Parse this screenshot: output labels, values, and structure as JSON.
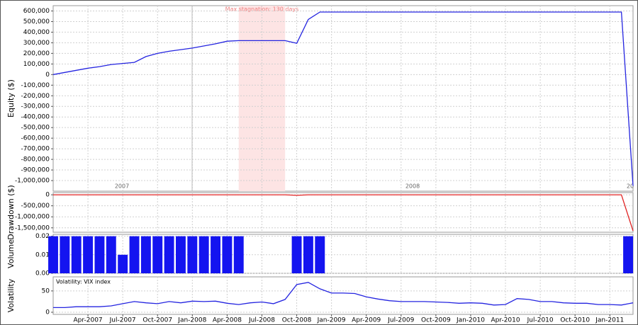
{
  "chart_data": [
    {
      "type": "line",
      "y_label": "Equity ($)",
      "top_axis_labels": [
        "2007",
        "2008",
        "20"
      ],
      "annotations": [
        {
          "text": "Max stagnation: 130 days",
          "start": "2008-05",
          "end": "2008-09"
        }
      ],
      "x": [
        "2007-01",
        "2007-02",
        "2007-03",
        "2007-04",
        "2007-05",
        "2007-06",
        "2007-07",
        "2007-08",
        "2007-09",
        "2007-10",
        "2007-11",
        "2007-12",
        "2008-01",
        "2008-02",
        "2008-03",
        "2008-04",
        "2008-05",
        "2008-06",
        "2008-07",
        "2008-08",
        "2008-09",
        "2008-10",
        "2008-11",
        "2008-12",
        "2009-01",
        "2009-02",
        "2009-03",
        "2009-04",
        "2009-05",
        "2009-06",
        "2009-07",
        "2009-08",
        "2009-09",
        "2009-10",
        "2009-11",
        "2009-12",
        "2010-01",
        "2010-02",
        "2010-03",
        "2010-04",
        "2010-05",
        "2010-06",
        "2010-07",
        "2010-08",
        "2010-09",
        "2010-10",
        "2010-11",
        "2010-12",
        "2011-01",
        "2011-02",
        "2011-03"
      ],
      "xlim": [
        "2007-01",
        "2011-03"
      ],
      "series": [
        {
          "color": "#2424e0",
          "values": [
            0,
            20000,
            40000,
            60000,
            75000,
            95000,
            105000,
            115000,
            170000,
            200000,
            220000,
            235000,
            250000,
            270000,
            290000,
            315000,
            320000,
            320000,
            320000,
            320000,
            320000,
            295000,
            520000,
            590000,
            590000,
            590000,
            590000,
            590000,
            590000,
            590000,
            590000,
            590000,
            590000,
            590000,
            590000,
            590000,
            590000,
            590000,
            590000,
            590000,
            590000,
            590000,
            590000,
            590000,
            590000,
            590000,
            590000,
            590000,
            590000,
            590000,
            -1050000
          ]
        }
      ],
      "ylim": [
        -1100000,
        650000
      ],
      "yticks": [
        {
          "value": 600000,
          "label": "600,000"
        },
        {
          "value": 500000,
          "label": "500,000"
        },
        {
          "value": 400000,
          "label": "400,000"
        },
        {
          "value": 300000,
          "label": "300,000"
        },
        {
          "value": 200000,
          "label": "200,000"
        },
        {
          "value": 100000,
          "label": "100,000"
        },
        0,
        {
          "value": -100000,
          "label": "-100,000"
        },
        {
          "value": -200000,
          "label": "-200,000"
        },
        {
          "value": -300000,
          "label": "-300,000"
        },
        {
          "value": -400000,
          "label": "-400,000"
        },
        {
          "value": -500000,
          "label": "-500,000"
        },
        {
          "value": -600000,
          "label": "-600,000"
        },
        {
          "value": -700000,
          "label": "-700,000"
        },
        {
          "value": -800000,
          "label": "-800,000"
        },
        {
          "value": -900000,
          "label": "-900,000"
        },
        {
          "value": -1000000,
          "label": "-1,000,000"
        }
      ],
      "grid": true
    },
    {
      "type": "line",
      "y_label": "Drawdown ($)",
      "x": [
        "2007-01",
        "2007-02",
        "2007-03",
        "2007-04",
        "2007-05",
        "2007-06",
        "2007-07",
        "2007-08",
        "2007-09",
        "2007-10",
        "2007-11",
        "2007-12",
        "2008-01",
        "2008-02",
        "2008-03",
        "2008-04",
        "2008-05",
        "2008-06",
        "2008-07",
        "2008-08",
        "2008-09",
        "2008-10",
        "2008-11",
        "2008-12",
        "2009-01",
        "2009-02",
        "2009-03",
        "2009-04",
        "2009-05",
        "2009-06",
        "2009-07",
        "2009-08",
        "2009-09",
        "2009-10",
        "2009-11",
        "2009-12",
        "2010-01",
        "2010-02",
        "2010-03",
        "2010-04",
        "2010-05",
        "2010-06",
        "2010-07",
        "2010-08",
        "2010-09",
        "2010-10",
        "2010-11",
        "2010-12",
        "2011-01",
        "2011-02",
        "2011-03"
      ],
      "xlim": [
        "2007-01",
        "2011-03"
      ],
      "series": [
        {
          "color": "#e02020",
          "values": [
            0,
            0,
            0,
            0,
            0,
            0,
            0,
            0,
            0,
            0,
            0,
            0,
            0,
            0,
            0,
            0,
            0,
            0,
            0,
            0,
            0,
            -25000,
            0,
            0,
            0,
            0,
            0,
            0,
            0,
            0,
            0,
            0,
            0,
            0,
            0,
            0,
            0,
            0,
            0,
            0,
            0,
            0,
            0,
            0,
            0,
            0,
            0,
            0,
            0,
            0,
            -1640000
          ]
        }
      ],
      "ylim": [
        -1700000,
        100000
      ],
      "yticks": [
        0,
        {
          "value": -500000,
          "label": "-500,000"
        },
        {
          "value": -1000000,
          "label": "-1,000,000"
        },
        {
          "value": -1500000,
          "label": "-1,500,000"
        }
      ],
      "grid": true
    },
    {
      "type": "bar",
      "y_label": "Volume",
      "x": [
        "2007-01",
        "2007-02",
        "2007-03",
        "2007-04",
        "2007-05",
        "2007-06",
        "2007-07",
        "2007-08",
        "2007-09",
        "2007-10",
        "2007-11",
        "2007-12",
        "2008-01",
        "2008-02",
        "2008-03",
        "2008-04",
        "2008-05",
        "2008-06",
        "2008-07",
        "2008-08",
        "2008-09",
        "2008-10",
        "2008-11",
        "2008-12",
        "2009-01",
        "2009-02",
        "2009-03",
        "2009-04",
        "2009-05",
        "2009-06",
        "2009-07",
        "2009-08",
        "2009-09",
        "2009-10",
        "2009-11",
        "2009-12",
        "2010-01",
        "2010-02",
        "2010-03",
        "2010-04",
        "2010-05",
        "2010-06",
        "2010-07",
        "2010-08",
        "2010-09",
        "2010-10",
        "2010-11",
        "2010-12",
        "2011-01",
        "2011-02",
        "2011-03"
      ],
      "xlim": [
        "2007-01",
        "2011-03"
      ],
      "series": [
        {
          "color": "#1414f0",
          "values": [
            0.02,
            0.02,
            0.02,
            0.02,
            0.02,
            0.02,
            0.01,
            0.02,
            0.02,
            0.02,
            0.02,
            0.02,
            0.02,
            0.02,
            0.02,
            0.02,
            0.02,
            0,
            0,
            0,
            0,
            0.02,
            0.02,
            0.02,
            0,
            0,
            0,
            0,
            0,
            0,
            0,
            0,
            0,
            0,
            0,
            0,
            0,
            0,
            0,
            0,
            0,
            0,
            0,
            0,
            0,
            0,
            0,
            0,
            0,
            0,
            0.02
          ]
        }
      ],
      "ylim": [
        0,
        0.021
      ],
      "yticks": [
        0.02,
        0.01,
        {
          "value": 0,
          "label": "0.00"
        }
      ],
      "grid": true
    },
    {
      "type": "line",
      "y_label": "Volatility",
      "x": [
        "2007-01",
        "2007-02",
        "2007-03",
        "2007-04",
        "2007-05",
        "2007-06",
        "2007-07",
        "2007-08",
        "2007-09",
        "2007-10",
        "2007-11",
        "2007-12",
        "2008-01",
        "2008-02",
        "2008-03",
        "2008-04",
        "2008-05",
        "2008-06",
        "2008-07",
        "2008-08",
        "2008-09",
        "2008-10",
        "2008-11",
        "2008-12",
        "2009-01",
        "2009-02",
        "2009-03",
        "2009-04",
        "2009-05",
        "2009-06",
        "2009-07",
        "2009-08",
        "2009-09",
        "2009-10",
        "2009-11",
        "2009-12",
        "2010-01",
        "2010-02",
        "2010-03",
        "2010-04",
        "2010-05",
        "2010-06",
        "2010-07",
        "2010-08",
        "2010-09",
        "2010-10",
        "2010-11",
        "2010-12",
        "2011-01",
        "2011-02",
        "2011-03"
      ],
      "xlim": [
        "2007-01",
        "2011-03"
      ],
      "series": [
        {
          "name": "Volatility: VIX index",
          "color": "#2424e0",
          "values": [
            11,
            11,
            13,
            13,
            13,
            15,
            20,
            25,
            22,
            20,
            25,
            22,
            26,
            25,
            26,
            21,
            18,
            22,
            24,
            20,
            30,
            65,
            70,
            55,
            45,
            45,
            44,
            36,
            31,
            27,
            25,
            25,
            25,
            24,
            23,
            21,
            22,
            21,
            17,
            18,
            32,
            30,
            25,
            25,
            22,
            21,
            21,
            18,
            18,
            17,
            22
          ]
        }
      ],
      "ylim": [
        -5,
        83
      ],
      "yticks": [
        50,
        0
      ],
      "xticks": [
        {
          "value": "2007-04",
          "label": "Apr-2007"
        },
        {
          "value": "2007-07",
          "label": "Jul-2007"
        },
        {
          "value": "2007-10",
          "label": "Oct-2007"
        },
        {
          "value": "2008-01",
          "label": "Jan-2008"
        },
        {
          "value": "2008-04",
          "label": "Apr-2008"
        },
        {
          "value": "2008-07",
          "label": "Jul-2008"
        },
        {
          "value": "2008-10",
          "label": "Oct-2008"
        },
        {
          "value": "2009-01",
          "label": "Jan-2009"
        },
        {
          "value": "2009-04",
          "label": "Apr-2009"
        },
        {
          "value": "2009-07",
          "label": "Jul-2009"
        },
        {
          "value": "2009-10",
          "label": "Oct-2009"
        },
        {
          "value": "2010-01",
          "label": "Jan-2010"
        },
        {
          "value": "2010-04",
          "label": "Apr-2010"
        },
        {
          "value": "2010-07",
          "label": "Jul-2010"
        },
        {
          "value": "2010-10",
          "label": "Oct-2010"
        },
        {
          "value": "2011-01",
          "label": "Jan-2011"
        }
      ],
      "grid": true
    }
  ]
}
